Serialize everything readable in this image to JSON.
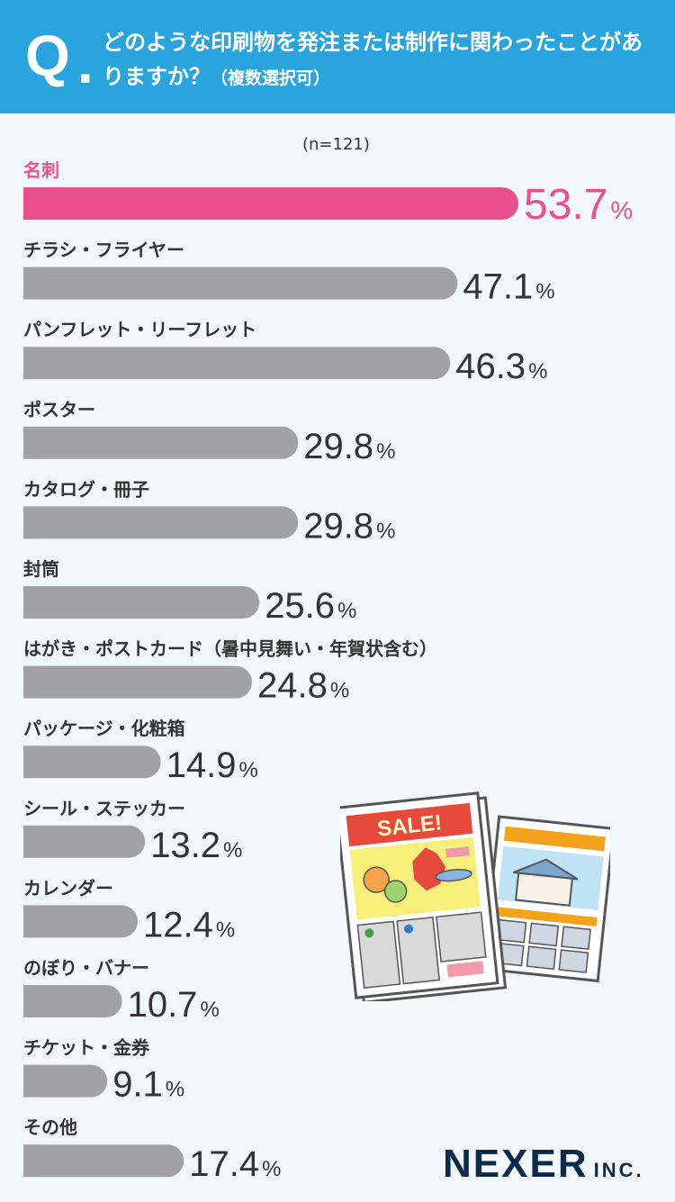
{
  "header": {
    "q_mark": "Q",
    "q_dot": ".",
    "question": "どのような印刷物を発注または制作に関わったことがありますか？",
    "note": "（複数選択可）"
  },
  "sample_size": "(n=121)",
  "colors": {
    "header_bg": "#29a4dc",
    "highlight": "#e9508f",
    "bar": "#a2a2a5",
    "text": "#333333"
  },
  "chart_data": {
    "type": "bar",
    "orientation": "horizontal",
    "unit": "%",
    "categories": [
      "名刺",
      "チラシ・フライヤー",
      "パンフレット・リーフレット",
      "ポスター",
      "カタログ・冊子",
      "封筒",
      "はがき・ポストカード（暑中見舞い・年賀状含む）",
      "パッケージ・化粧箱",
      "シール・ステッカー",
      "カレンダー",
      "のぼり・バナー",
      "チケット・金券",
      "その他"
    ],
    "values": [
      53.7,
      47.1,
      46.3,
      29.8,
      29.8,
      25.6,
      24.8,
      14.9,
      13.2,
      12.4,
      10.7,
      9.1,
      17.4
    ],
    "value_labels": [
      "53.7",
      "47.1",
      "46.3",
      "29.8",
      "29.8",
      "25.6",
      "24.8",
      "14.9",
      "13.2",
      "12.4",
      "10.7",
      "9.1",
      "17.4"
    ],
    "highlight_index": 0,
    "xlim": [
      0,
      53.7
    ],
    "grid": false,
    "legend": "none"
  },
  "logo": {
    "main": "NEXER",
    "inc": "INC."
  },
  "illustration": {
    "sign_text": "SALE!"
  }
}
